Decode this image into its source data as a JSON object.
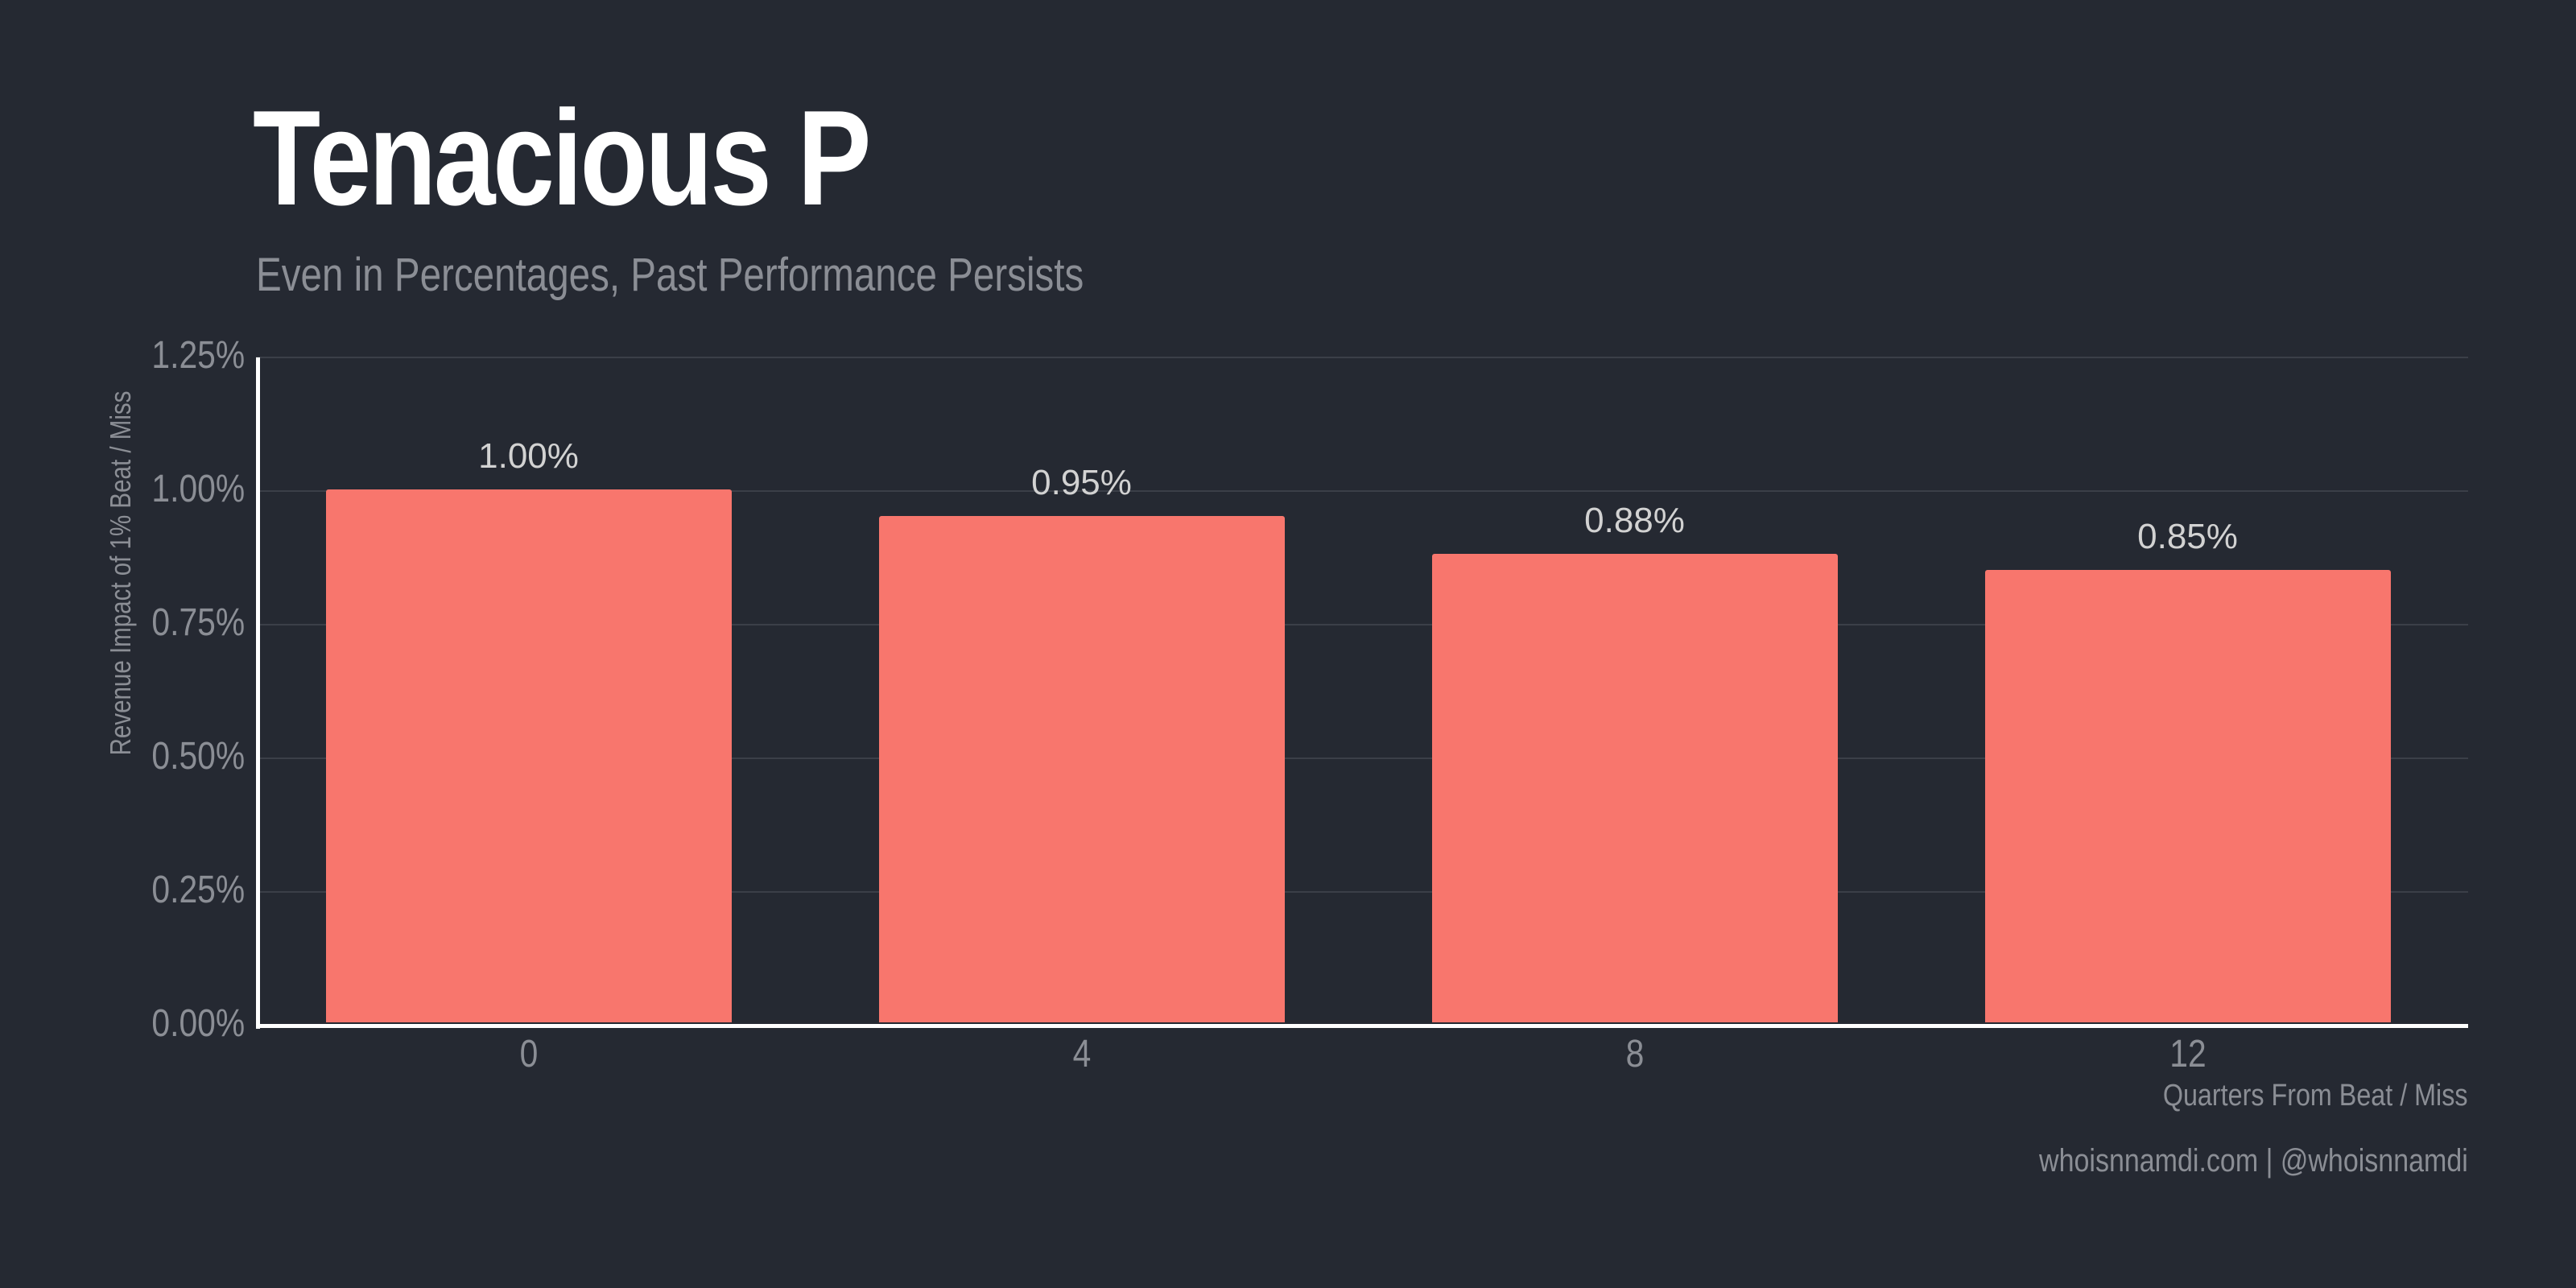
{
  "header": {
    "title": "Tenacious P",
    "subtitle": "Even in Percentages, Past Performance Persists"
  },
  "axes": {
    "y_ticks": [
      "0.00%",
      "0.25%",
      "0.50%",
      "0.75%",
      "1.00%",
      "1.25%"
    ],
    "y_label": "Revenue Impact of 1% Beat / Miss",
    "x_ticks": [
      "0",
      "4",
      "8",
      "12"
    ],
    "x_label": "Quarters From Beat / Miss"
  },
  "bars": [
    {
      "category": "0",
      "value": 1.0,
      "label": "1.00%"
    },
    {
      "category": "4",
      "value": 0.95,
      "label": "0.95%"
    },
    {
      "category": "8",
      "value": 0.88,
      "label": "0.88%"
    },
    {
      "category": "12",
      "value": 0.85,
      "label": "0.85%"
    }
  ],
  "colors": {
    "bar": "#f8766d",
    "background": "#252932",
    "text_muted": "#8b8e95"
  },
  "footer": {
    "credit": "whoisnnamdi.com | @whoisnnamdi"
  },
  "chart_data": {
    "type": "bar",
    "title": "Tenacious P",
    "subtitle": "Even in Percentages, Past Performance Persists",
    "categories": [
      "0",
      "4",
      "8",
      "12"
    ],
    "values": [
      1.0,
      0.95,
      0.88,
      0.85
    ],
    "value_labels": [
      "1.00%",
      "0.95%",
      "0.88%",
      "0.85%"
    ],
    "xlabel": "Quarters From Beat / Miss",
    "ylabel": "Revenue Impact of 1% Beat / Miss",
    "ylim": [
      0,
      1.25
    ],
    "y_ticks": [
      "0.00%",
      "0.25%",
      "0.50%",
      "0.75%",
      "1.00%",
      "1.25%"
    ],
    "grid": "horizontal",
    "legend": "none",
    "caption": "whoisnnamdi.com | @whoisnnamdi"
  }
}
